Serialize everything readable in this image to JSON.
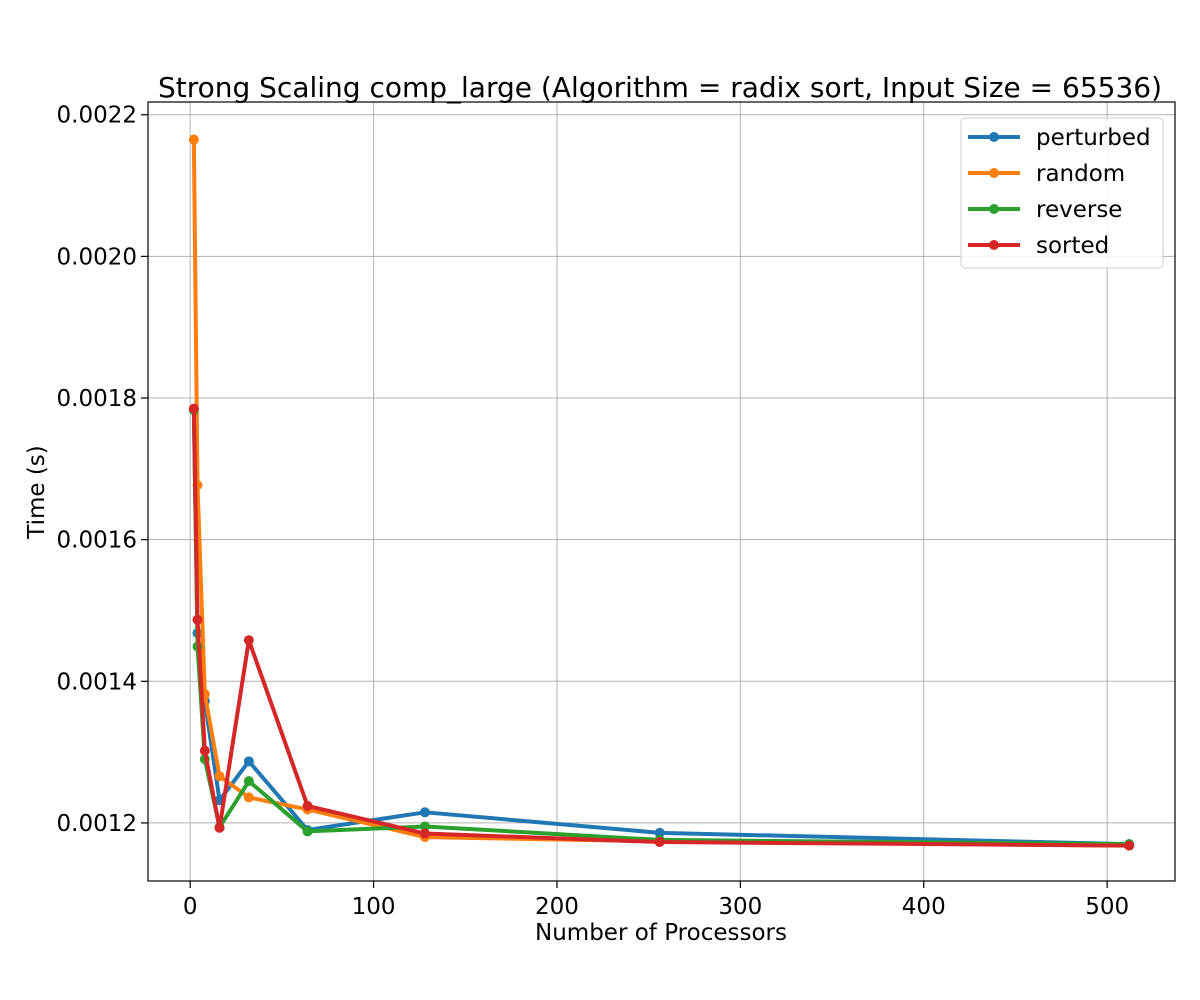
{
  "chart_data": {
    "type": "line",
    "title": "Strong Scaling comp_large (Algorithm = radix sort, Input Size = 65536)",
    "xlabel": "Number of Processors",
    "ylabel": "Time (s)",
    "xlim": [
      -23,
      537
    ],
    "ylim": [
      0.001118,
      0.002218
    ],
    "xticks": [
      0,
      100,
      200,
      300,
      400,
      500
    ],
    "xtick_labels": [
      "0",
      "100",
      "200",
      "300",
      "400",
      "500"
    ],
    "yticks": [
      0.0012,
      0.0014,
      0.0016,
      0.0018,
      0.002,
      0.0022
    ],
    "ytick_labels": [
      "0.0012",
      "0.0014",
      "0.0016",
      "0.0018",
      "0.0020",
      "0.0022"
    ],
    "grid": true,
    "legend_position": "top-right",
    "x": [
      2,
      4,
      8,
      16,
      32,
      64,
      128,
      256,
      512
    ],
    "series": [
      {
        "name": "perturbed",
        "color": "#1f77b4",
        "values": [
          0.001784,
          0.001468,
          0.001372,
          0.001232,
          0.001287,
          0.00119,
          0.001215,
          0.001186,
          0.00117
        ]
      },
      {
        "name": "random",
        "color": "#ff7f0e",
        "values": [
          0.002165,
          0.001677,
          0.001382,
          0.001266,
          0.001236,
          0.001219,
          0.00118,
          0.001174,
          0.001168
        ]
      },
      {
        "name": "reverse",
        "color": "#2ca02c",
        "values": [
          0.001783,
          0.001449,
          0.00129,
          0.001194,
          0.001259,
          0.001188,
          0.001195,
          0.001176,
          0.00117
        ]
      },
      {
        "name": "sorted",
        "color": "#d62728",
        "values": [
          0.001785,
          0.001487,
          0.001302,
          0.001193,
          0.001458,
          0.001224,
          0.001185,
          0.001173,
          0.001168
        ]
      }
    ]
  }
}
